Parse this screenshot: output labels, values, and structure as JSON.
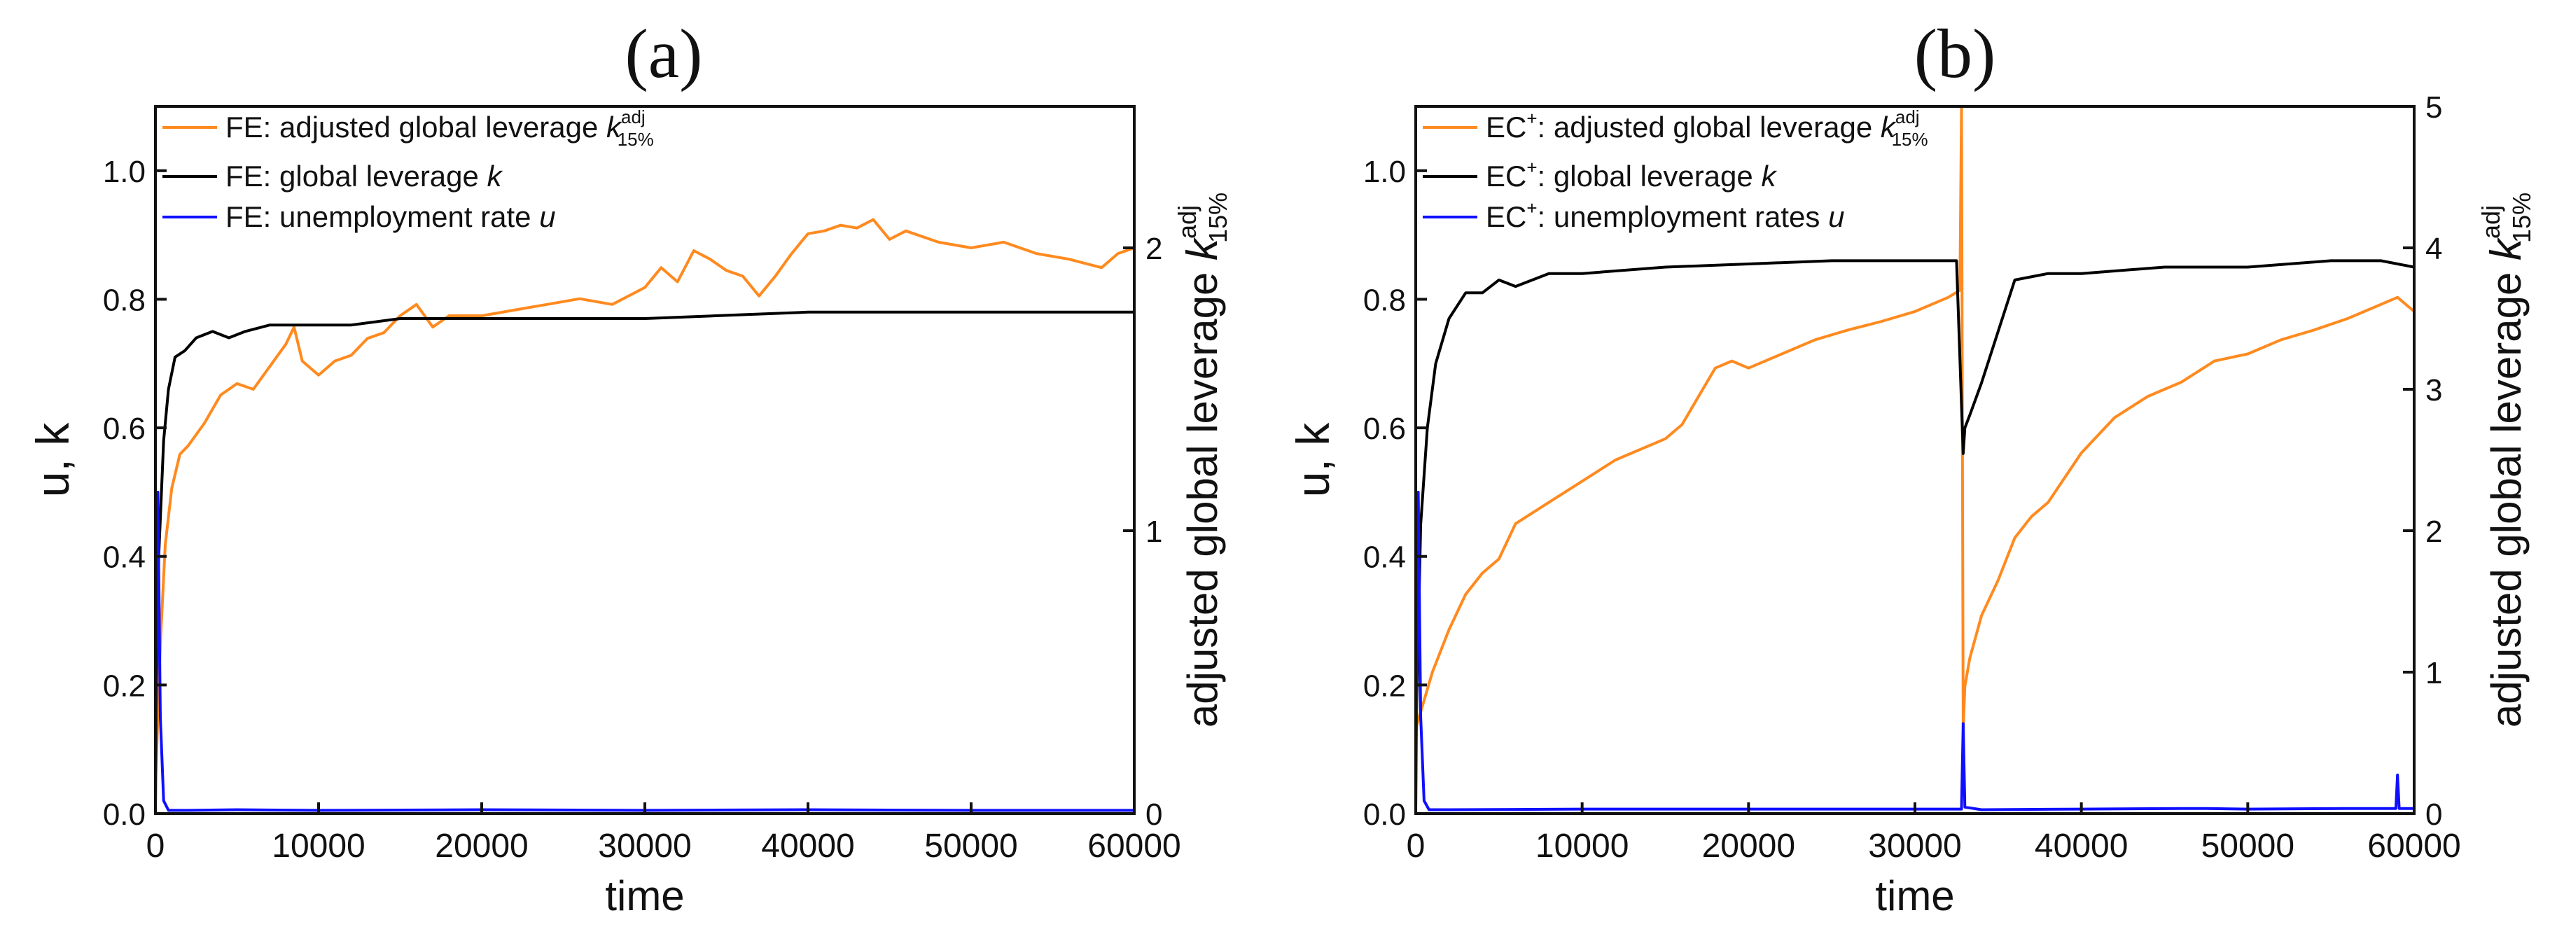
{
  "chart_data": [
    {
      "type": "line",
      "panel_label": "(a)",
      "xlabel": "time",
      "ylabel": "u, k",
      "y2label": "adjusted global leverage k15%adj",
      "y2label_parts": {
        "main": "adjusted global leverage ",
        "symbol": "k",
        "sup": "adj",
        "sub": "15%"
      },
      "xlim": [
        0,
        60000
      ],
      "ylim": [
        0,
        1.1
      ],
      "y2lim": [
        0,
        2.5
      ],
      "xticks": [
        "0",
        "10000",
        "20000",
        "30000",
        "40000",
        "50000",
        "60000"
      ],
      "yticks": [
        "0.0",
        "0.2",
        "0.4",
        "0.6",
        "0.8",
        "1.0"
      ],
      "y2ticks": [
        "0",
        "1",
        "2"
      ],
      "legend": [
        {
          "label": "FE: adjusted global leverage k15%adj",
          "prefix": "FE: adjusted global leverage ",
          "symbol": "k",
          "sup": "adj",
          "sub": "15%",
          "color": "#ff8a1f"
        },
        {
          "label": "FE: global leverage k",
          "prefix": "FE: global leverage ",
          "symbol": "k",
          "color": "#000000"
        },
        {
          "label": "FE: unemployment rate u",
          "prefix": "FE: unemployment rate ",
          "symbol": "u",
          "color": "#1010ff"
        }
      ],
      "series": [
        {
          "name": "FE: adjusted global leverage",
          "axis": "right",
          "color": "#ff8a1f",
          "x": [
            0,
            300,
            600,
            1000,
            1500,
            2000,
            3000,
            4000,
            5000,
            6000,
            7000,
            8000,
            8500,
            9000,
            10000,
            11000,
            12000,
            13000,
            14000,
            15000,
            16000,
            17000,
            18000,
            20000,
            22000,
            24000,
            26000,
            28000,
            30000,
            31000,
            32000,
            33000,
            34000,
            35000,
            36000,
            37000,
            38000,
            39000,
            40000,
            41000,
            42000,
            43000,
            44000,
            45000,
            46000,
            48000,
            50000,
            52000,
            54000,
            56000,
            58000,
            59000,
            60000
          ],
          "y": [
            0.1,
            0.6,
            0.95,
            1.15,
            1.27,
            1.3,
            1.38,
            1.48,
            1.52,
            1.5,
            1.58,
            1.66,
            1.72,
            1.6,
            1.55,
            1.6,
            1.62,
            1.68,
            1.7,
            1.76,
            1.8,
            1.72,
            1.76,
            1.76,
            1.78,
            1.8,
            1.82,
            1.8,
            1.86,
            1.93,
            1.88,
            1.99,
            1.96,
            1.92,
            1.9,
            1.83,
            1.9,
            1.98,
            2.05,
            2.06,
            2.08,
            2.07,
            2.1,
            2.03,
            2.06,
            2.02,
            2.0,
            2.02,
            1.98,
            1.96,
            1.93,
            1.98,
            2.0
          ]
        },
        {
          "name": "FE: global leverage k",
          "axis": "left",
          "color": "#000000",
          "x": [
            0,
            200,
            500,
            800,
            1200,
            1800,
            2500,
            3500,
            4500,
            5500,
            7000,
            9000,
            12000,
            15000,
            20000,
            25000,
            30000,
            35000,
            40000,
            45000,
            50000,
            55000,
            60000
          ],
          "y": [
            0.1,
            0.4,
            0.58,
            0.66,
            0.71,
            0.72,
            0.74,
            0.75,
            0.74,
            0.75,
            0.76,
            0.76,
            0.76,
            0.77,
            0.77,
            0.77,
            0.77,
            0.775,
            0.78,
            0.78,
            0.78,
            0.78,
            0.78
          ]
        },
        {
          "name": "FE: unemployment rate u",
          "axis": "left",
          "color": "#1010ff",
          "x": [
            0,
            150,
            300,
            500,
            800,
            2000,
            5000,
            10000,
            20000,
            30000,
            40000,
            50000,
            60000
          ],
          "y": [
            0.0,
            0.5,
            0.15,
            0.02,
            0.005,
            0.005,
            0.006,
            0.005,
            0.006,
            0.005,
            0.006,
            0.005,
            0.005
          ]
        }
      ]
    },
    {
      "type": "line",
      "panel_label": "(b)",
      "xlabel": "time",
      "ylabel": "u, k",
      "y2label": "adjusted global leverage k15%adj",
      "y2label_parts": {
        "main": "adjusted global leverage ",
        "symbol": "k",
        "sup": "adj",
        "sub": "15%"
      },
      "xlim": [
        0,
        60000
      ],
      "ylim": [
        0,
        1.1
      ],
      "y2lim": [
        0,
        5
      ],
      "xticks": [
        "0",
        "10000",
        "20000",
        "30000",
        "40000",
        "50000",
        "60000"
      ],
      "yticks": [
        "0.0",
        "0.2",
        "0.4",
        "0.6",
        "0.8",
        "1.0"
      ],
      "y2ticks": [
        "0",
        "1",
        "2",
        "3",
        "4",
        "5"
      ],
      "legend": [
        {
          "label": "EC+: adjusted global leverage k15%adj",
          "prefix": "EC",
          "prefix_sup": "+",
          "rest": ": adjusted global leverage  ",
          "symbol": "k",
          "sup": "adj",
          "sub": "15%",
          "color": "#ff8a1f"
        },
        {
          "label": "EC+: global leverage k",
          "prefix": "EC",
          "prefix_sup": "+",
          "rest": ": global leverage ",
          "symbol": "k",
          "color": "#000000"
        },
        {
          "label": "EC+: unemployment rates u",
          "prefix": "EC",
          "prefix_sup": "+",
          "rest": ": unemployment rates ",
          "symbol": "u",
          "color": "#1010ff"
        }
      ],
      "series": [
        {
          "name": "EC+: adjusted global leverage",
          "axis": "right",
          "color": "#ff8a1f",
          "x": [
            0,
            500,
            1000,
            2000,
            3000,
            4000,
            5000,
            6000,
            8000,
            10000,
            12000,
            14000,
            15000,
            16000,
            17000,
            18000,
            19000,
            20000,
            22000,
            24000,
            26000,
            28000,
            30000,
            31000,
            32000,
            32700,
            32800,
            32900,
            33000,
            33300,
            34000,
            35000,
            36000,
            37000,
            38000,
            40000,
            42000,
            44000,
            46000,
            48000,
            50000,
            52000,
            54000,
            56000,
            58000,
            59000,
            60000
          ],
          "y": [
            0.6,
            0.8,
            1.0,
            1.3,
            1.55,
            1.7,
            1.8,
            2.05,
            2.2,
            2.35,
            2.5,
            2.6,
            2.65,
            2.75,
            2.95,
            3.15,
            3.2,
            3.15,
            3.25,
            3.35,
            3.42,
            3.48,
            3.55,
            3.6,
            3.65,
            3.7,
            5.0,
            0.6,
            0.9,
            1.1,
            1.4,
            1.65,
            1.95,
            2.1,
            2.2,
            2.55,
            2.8,
            2.95,
            3.05,
            3.2,
            3.25,
            3.35,
            3.42,
            3.5,
            3.6,
            3.65,
            3.55
          ]
        },
        {
          "name": "EC+: global leverage k",
          "axis": "left",
          "color": "#000000",
          "x": [
            0,
            300,
            700,
            1200,
            2000,
            3000,
            4000,
            5000,
            6000,
            8000,
            10000,
            15000,
            20000,
            25000,
            30000,
            32500,
            32900,
            33000,
            33300,
            34000,
            35000,
            36000,
            38000,
            40000,
            45000,
            50000,
            55000,
            58000,
            60000
          ],
          "y": [
            0.1,
            0.45,
            0.6,
            0.7,
            0.77,
            0.81,
            0.81,
            0.83,
            0.82,
            0.84,
            0.84,
            0.85,
            0.855,
            0.86,
            0.86,
            0.86,
            0.56,
            0.6,
            0.62,
            0.67,
            0.75,
            0.83,
            0.84,
            0.84,
            0.85,
            0.85,
            0.86,
            0.86,
            0.85
          ]
        },
        {
          "name": "EC+: unemployment rates u",
          "axis": "left",
          "color": "#1010ff",
          "x": [
            0,
            150,
            300,
            500,
            800,
            2000,
            10000,
            20000,
            30000,
            32800,
            32900,
            33000,
            34000,
            40000,
            46000,
            47500,
            50000,
            56000,
            58900,
            59000,
            59100,
            60000
          ],
          "y": [
            0.0,
            0.5,
            0.15,
            0.02,
            0.006,
            0.006,
            0.007,
            0.007,
            0.007,
            0.007,
            0.14,
            0.01,
            0.006,
            0.007,
            0.008,
            0.008,
            0.007,
            0.008,
            0.008,
            0.06,
            0.008,
            0.008
          ]
        }
      ]
    }
  ]
}
